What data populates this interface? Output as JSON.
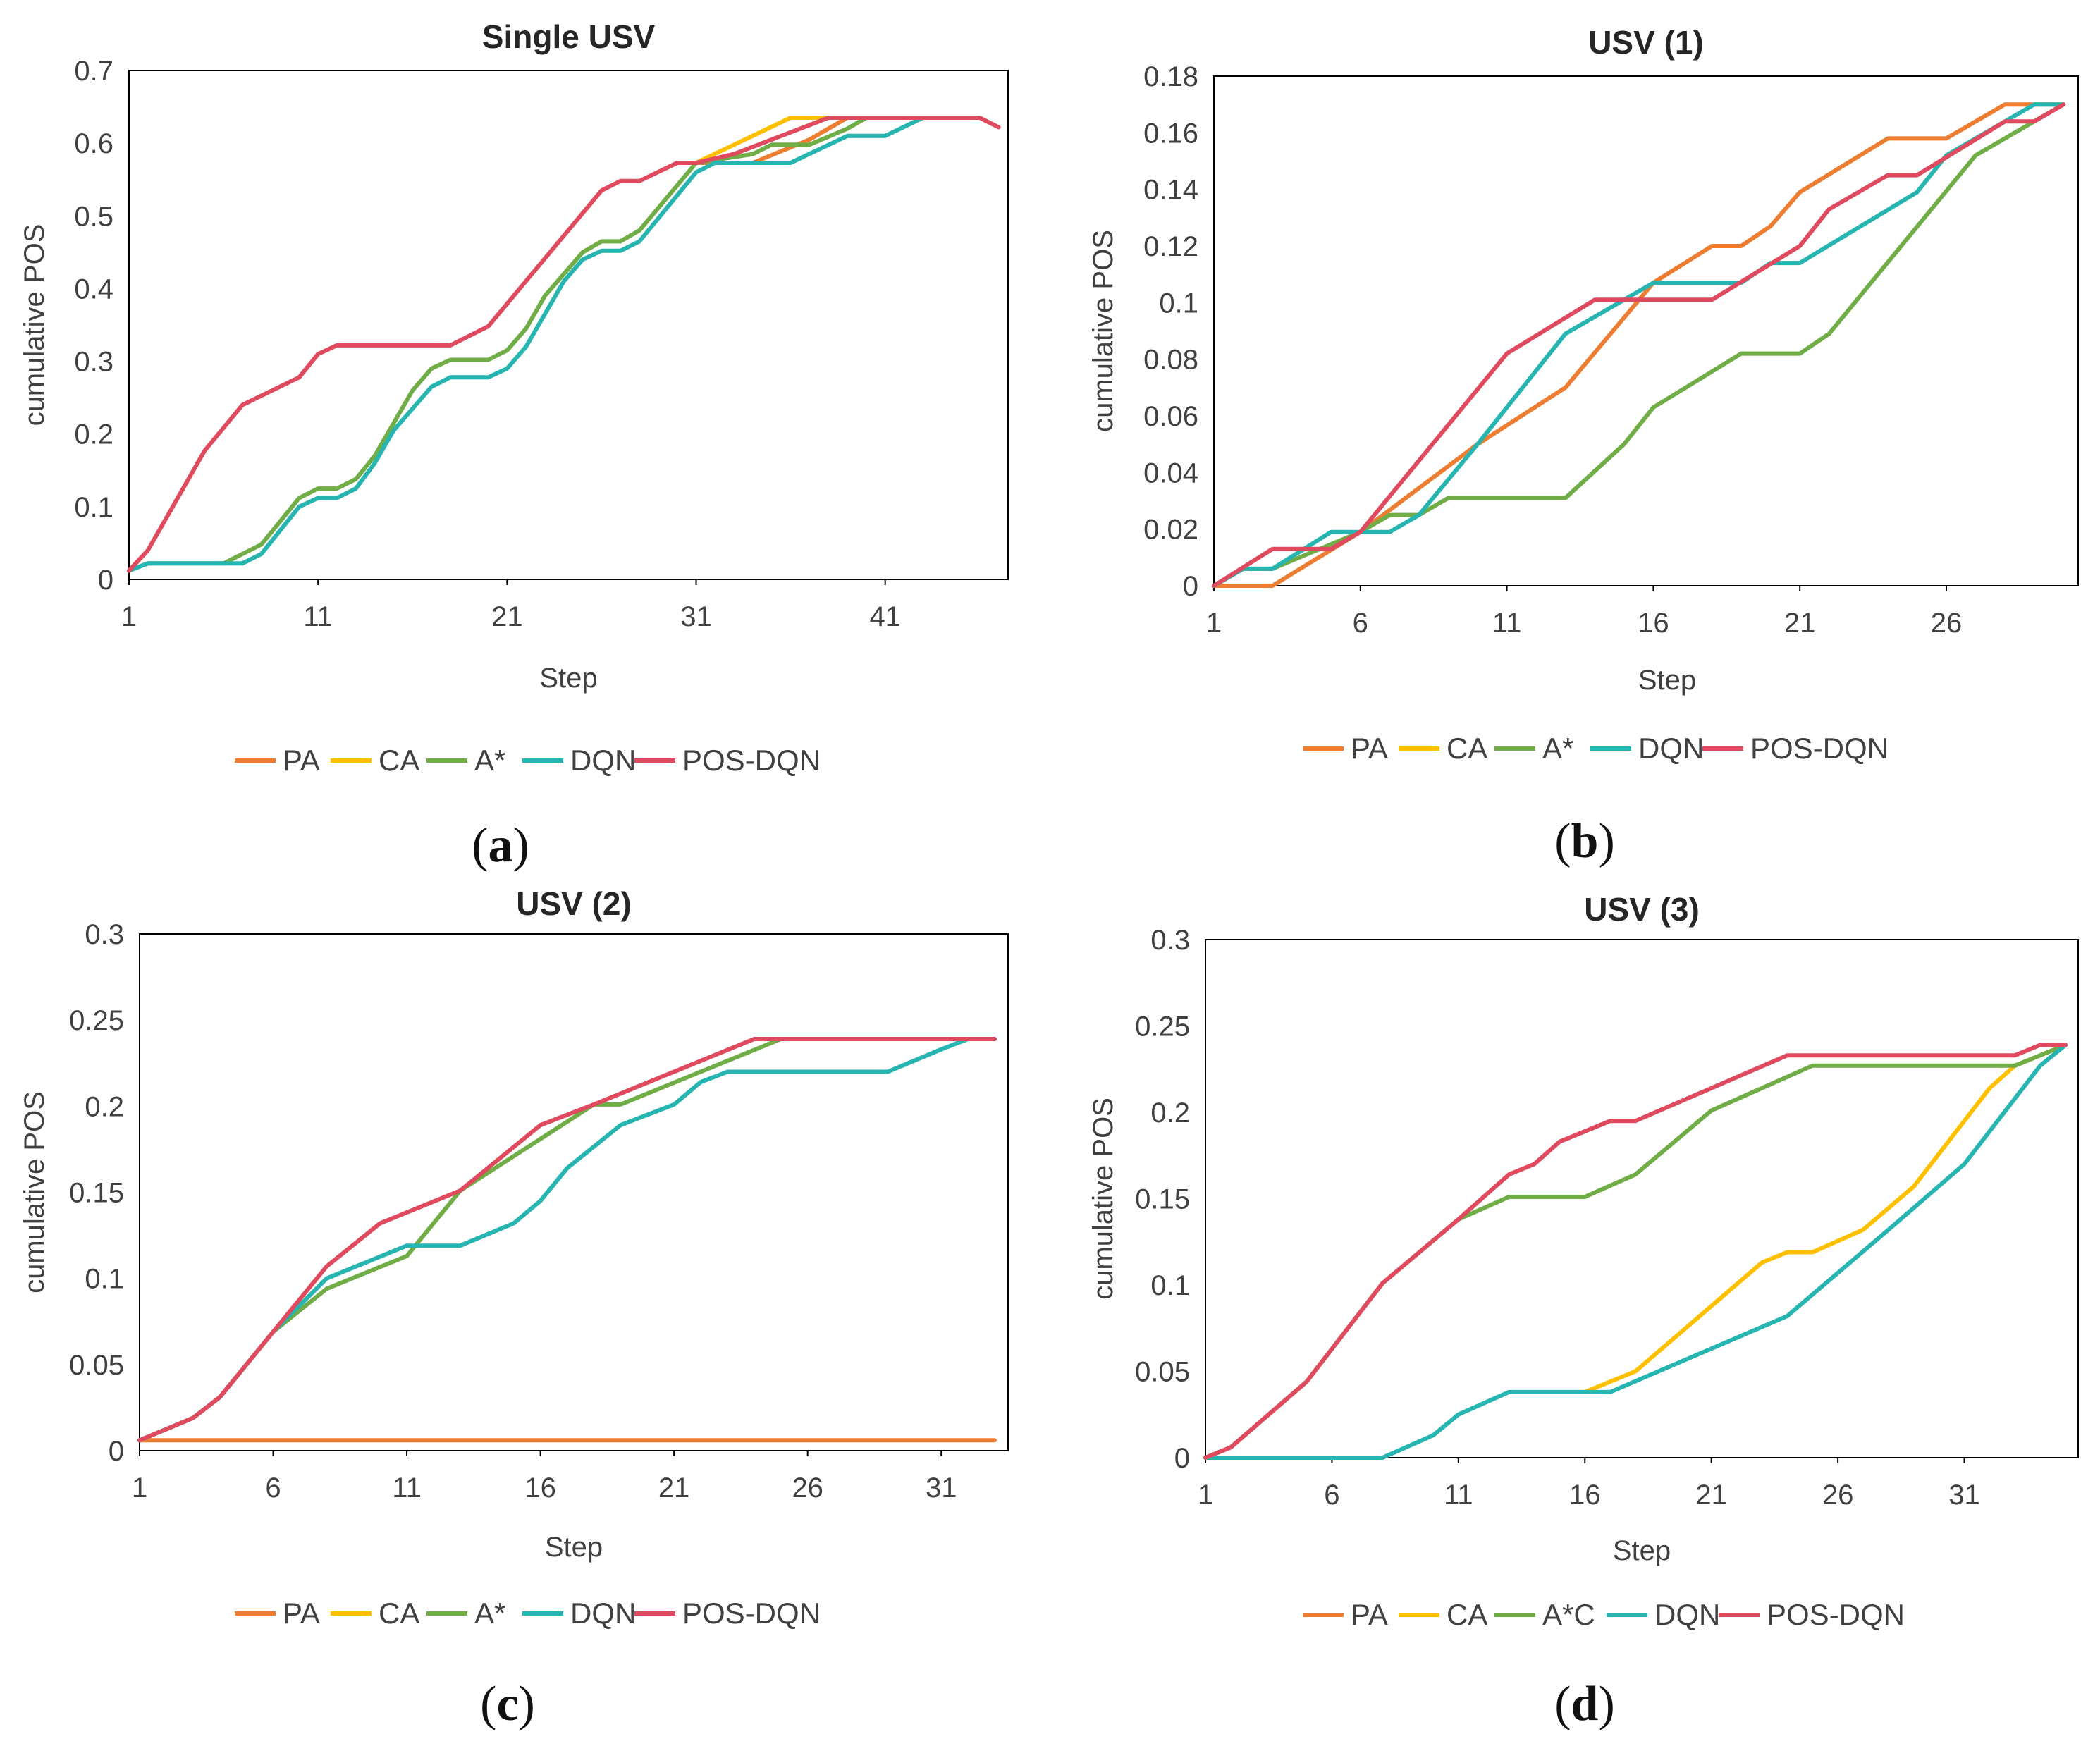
{
  "chart_data": [
    {
      "type": "line",
      "title": "Single USV",
      "caption_letter": "a",
      "xlabel": "Step",
      "ylabel": "cumulative POS",
      "x_ticks": [
        "1",
        "11",
        "21",
        "31",
        "41"
      ],
      "y_ticks": [
        "0",
        "0.1",
        "0.2",
        "0.3",
        "0.4",
        "0.5",
        "0.6",
        "0.7"
      ],
      "xlim": [
        1,
        47.5
      ],
      "ylim": [
        0,
        0.7
      ],
      "legend": [
        "PA",
        "CA",
        "A*",
        "DQN",
        "POS-DQN"
      ],
      "series": [
        {
          "name": "PA",
          "color": "#ed7d31",
          "points": [
            [
              31,
              0.573
            ],
            [
              34,
              0.573
            ],
            [
              37,
              0.605
            ],
            [
              39,
              0.635
            ],
            [
              44,
              0.635
            ]
          ]
        },
        {
          "name": "CA",
          "color": "#ffc000",
          "points": [
            [
              31,
              0.573
            ],
            [
              36,
              0.635
            ],
            [
              44,
              0.635
            ]
          ]
        },
        {
          "name": "A*",
          "color": "#70ad47",
          "points": [
            [
              1,
              0.012
            ],
            [
              2,
              0.022
            ],
            [
              6,
              0.022
            ],
            [
              8,
              0.048
            ],
            [
              10,
              0.112
            ],
            [
              11,
              0.125
            ],
            [
              12,
              0.125
            ],
            [
              13,
              0.138
            ],
            [
              14,
              0.17
            ],
            [
              16,
              0.26
            ],
            [
              17,
              0.29
            ],
            [
              18,
              0.302
            ],
            [
              20,
              0.302
            ],
            [
              21,
              0.315
            ],
            [
              22,
              0.345
            ],
            [
              23,
              0.39
            ],
            [
              25,
              0.45
            ],
            [
              26,
              0.465
            ],
            [
              27,
              0.465
            ],
            [
              28,
              0.48
            ],
            [
              31,
              0.573
            ],
            [
              34,
              0.585
            ],
            [
              35,
              0.598
            ],
            [
              37,
              0.598
            ],
            [
              39,
              0.62
            ],
            [
              40,
              0.635
            ],
            [
              44,
              0.635
            ]
          ]
        },
        {
          "name": "DQN",
          "color": "#26b5b0",
          "points": [
            [
              1,
              0.012
            ],
            [
              2,
              0.022
            ],
            [
              7,
              0.022
            ],
            [
              8,
              0.035
            ],
            [
              10,
              0.1
            ],
            [
              11,
              0.112
            ],
            [
              12,
              0.112
            ],
            [
              13,
              0.125
            ],
            [
              14,
              0.16
            ],
            [
              15,
              0.205
            ],
            [
              17,
              0.265
            ],
            [
              18,
              0.278
            ],
            [
              20,
              0.278
            ],
            [
              21,
              0.29
            ],
            [
              22,
              0.32
            ],
            [
              24,
              0.41
            ],
            [
              25,
              0.44
            ],
            [
              26,
              0.452
            ],
            [
              27,
              0.452
            ],
            [
              28,
              0.465
            ],
            [
              31,
              0.56
            ],
            [
              32,
              0.573
            ],
            [
              36,
              0.573
            ],
            [
              39,
              0.61
            ],
            [
              41,
              0.61
            ],
            [
              43,
              0.635
            ],
            [
              44,
              0.635
            ]
          ]
        },
        {
          "name": "POS-DQN",
          "color": "#e04a5f",
          "points": [
            [
              1,
              0.012
            ],
            [
              2,
              0.04
            ],
            [
              5,
              0.177
            ],
            [
              7,
              0.24
            ],
            [
              10,
              0.278
            ],
            [
              11,
              0.31
            ],
            [
              12,
              0.322
            ],
            [
              18,
              0.322
            ],
            [
              20,
              0.348
            ],
            [
              26,
              0.535
            ],
            [
              27,
              0.548
            ],
            [
              28,
              0.548
            ],
            [
              30,
              0.573
            ],
            [
              31,
              0.573
            ],
            [
              33,
              0.585
            ],
            [
              37,
              0.625
            ],
            [
              38,
              0.635
            ],
            [
              46,
              0.635
            ],
            [
              47,
              0.622
            ]
          ]
        }
      ]
    },
    {
      "type": "line",
      "title": "USV (1)",
      "caption_letter": "b",
      "xlabel": "Step",
      "ylabel": "cumulative POS",
      "x_ticks": [
        "1",
        "6",
        "11",
        "16",
        "21",
        "26"
      ],
      "y_ticks": [
        "0",
        "0.02",
        "0.04",
        "0.06",
        "0.08",
        "0.1",
        "0.12",
        "0.14",
        "0.16",
        "0.18"
      ],
      "xlim": [
        1,
        30.5
      ],
      "ylim": [
        0,
        0.18
      ],
      "legend": [
        "PA",
        "CA",
        "A*",
        "DQN",
        "POS-DQN"
      ],
      "series": [
        {
          "name": "PA",
          "color": "#ed7d31",
          "points": [
            [
              1,
              0
            ],
            [
              3,
              0
            ],
            [
              6,
              0.019
            ],
            [
              10,
              0.05
            ],
            [
              13,
              0.07
            ],
            [
              16,
              0.107
            ],
            [
              18,
              0.12
            ],
            [
              19,
              0.12
            ],
            [
              20,
              0.127
            ],
            [
              21,
              0.139
            ],
            [
              24,
              0.158
            ],
            [
              26,
              0.158
            ],
            [
              28,
              0.17
            ],
            [
              30,
              0.17
            ]
          ]
        },
        {
          "name": "CA",
          "color": "#ffc000",
          "points": []
        },
        {
          "name": "A*",
          "color": "#70ad47",
          "points": [
            [
              1,
              0
            ],
            [
              2,
              0.006
            ],
            [
              3,
              0.006
            ],
            [
              6,
              0.019
            ],
            [
              7,
              0.025
            ],
            [
              8,
              0.025
            ],
            [
              9,
              0.031
            ],
            [
              13,
              0.031
            ],
            [
              15,
              0.05
            ],
            [
              16,
              0.063
            ],
            [
              19,
              0.082
            ],
            [
              21,
              0.082
            ],
            [
              22,
              0.089
            ],
            [
              27,
              0.152
            ],
            [
              30,
              0.17
            ]
          ]
        },
        {
          "name": "DQN",
          "color": "#26b5b0",
          "points": [
            [
              1,
              0
            ],
            [
              2,
              0.006
            ],
            [
              3,
              0.006
            ],
            [
              5,
              0.019
            ],
            [
              7,
              0.019
            ],
            [
              8,
              0.025
            ],
            [
              10,
              0.05
            ],
            [
              13,
              0.089
            ],
            [
              16,
              0.107
            ],
            [
              19,
              0.107
            ],
            [
              20,
              0.114
            ],
            [
              21,
              0.114
            ],
            [
              25,
              0.139
            ],
            [
              26,
              0.152
            ],
            [
              28,
              0.164
            ],
            [
              29,
              0.17
            ],
            [
              30,
              0.17
            ]
          ]
        },
        {
          "name": "POS-DQN",
          "color": "#e04a5f",
          "points": [
            [
              1,
              0
            ],
            [
              3,
              0.013
            ],
            [
              5,
              0.013
            ],
            [
              6,
              0.019
            ],
            [
              11,
              0.082
            ],
            [
              14,
              0.101
            ],
            [
              18,
              0.101
            ],
            [
              21,
              0.12
            ],
            [
              22,
              0.133
            ],
            [
              24,
              0.145
            ],
            [
              25,
              0.145
            ],
            [
              28,
              0.164
            ],
            [
              29,
              0.164
            ],
            [
              30,
              0.17
            ]
          ]
        }
      ]
    },
    {
      "type": "line",
      "title": "USV (2)",
      "caption_letter": "c",
      "xlabel": "Step",
      "ylabel": "cumulative POS",
      "x_ticks": [
        "1",
        "6",
        "11",
        "16",
        "21",
        "26",
        "31"
      ],
      "y_ticks": [
        "0",
        "0.05",
        "0.1",
        "0.15",
        "0.2",
        "0.25",
        "0.3"
      ],
      "xlim": [
        1,
        33.5
      ],
      "ylim": [
        0,
        0.3
      ],
      "legend": [
        "PA",
        "CA",
        "A*",
        "DQN",
        "POS-DQN"
      ],
      "series": [
        {
          "name": "PA",
          "color": "#ed7d31",
          "points": [
            [
              1,
              0.006
            ],
            [
              33,
              0.006
            ]
          ]
        },
        {
          "name": "CA",
          "color": "#ffc000",
          "points": []
        },
        {
          "name": "A*",
          "color": "#70ad47",
          "points": [
            [
              1,
              0.006
            ],
            [
              3,
              0.019
            ],
            [
              4,
              0.031
            ],
            [
              6,
              0.069
            ],
            [
              8,
              0.094
            ],
            [
              11,
              0.113
            ],
            [
              13,
              0.151
            ],
            [
              18,
              0.201
            ],
            [
              19,
              0.201
            ],
            [
              25,
              0.239
            ],
            [
              33,
              0.239
            ]
          ]
        },
        {
          "name": "DQN",
          "color": "#26b5b0",
          "points": [
            [
              1,
              0.006
            ],
            [
              3,
              0.019
            ],
            [
              4,
              0.031
            ],
            [
              6,
              0.069
            ],
            [
              8,
              0.1
            ],
            [
              11,
              0.119
            ],
            [
              13,
              0.119
            ],
            [
              15,
              0.132
            ],
            [
              16,
              0.145
            ],
            [
              17,
              0.164
            ],
            [
              19,
              0.189
            ],
            [
              21,
              0.201
            ],
            [
              22,
              0.214
            ],
            [
              23,
              0.22
            ],
            [
              29,
              0.22
            ],
            [
              31,
              0.233
            ],
            [
              32,
              0.239
            ],
            [
              33,
              0.239
            ]
          ]
        },
        {
          "name": "POS-DQN",
          "color": "#e04a5f",
          "points": [
            [
              1,
              0.006
            ],
            [
              3,
              0.019
            ],
            [
              4,
              0.031
            ],
            [
              6,
              0.069
            ],
            [
              8,
              0.107
            ],
            [
              10,
              0.132
            ],
            [
              13,
              0.151
            ],
            [
              16,
              0.189
            ],
            [
              18,
              0.201
            ],
            [
              24,
              0.239
            ],
            [
              33,
              0.239
            ]
          ]
        }
      ]
    },
    {
      "type": "line",
      "title": "USV (3)",
      "caption_letter": "d",
      "xlabel": "Step",
      "ylabel": "cumulative POS",
      "x_ticks": [
        "1",
        "6",
        "11",
        "16",
        "21",
        "26",
        "31"
      ],
      "y_ticks": [
        "0",
        "0.05",
        "0.1",
        "0.15",
        "0.2",
        "0.25",
        "0.3"
      ],
      "xlim": [
        1,
        35.5
      ],
      "ylim": [
        0,
        0.3
      ],
      "legend": [
        "PA",
        "CA",
        "A*C",
        "DQN",
        "POS-DQN"
      ],
      "series": [
        {
          "name": "PA",
          "color": "#ed7d31",
          "points": []
        },
        {
          "name": "CA",
          "color": "#ffc000",
          "points": [
            [
              16,
              0.038
            ],
            [
              18,
              0.05
            ],
            [
              23,
              0.113
            ],
            [
              24,
              0.119
            ],
            [
              25,
              0.119
            ],
            [
              27,
              0.132
            ],
            [
              29,
              0.157
            ],
            [
              32,
              0.214
            ],
            [
              33,
              0.227
            ],
            [
              35,
              0.239
            ]
          ]
        },
        {
          "name": "A*C",
          "color": "#70ad47",
          "points": [
            [
              1,
              0
            ],
            [
              2,
              0.006
            ],
            [
              5,
              0.044
            ],
            [
              8,
              0.101
            ],
            [
              11,
              0.138
            ],
            [
              13,
              0.151
            ],
            [
              16,
              0.151
            ],
            [
              18,
              0.164
            ],
            [
              21,
              0.201
            ],
            [
              25,
              0.227
            ],
            [
              33,
              0.227
            ],
            [
              35,
              0.239
            ]
          ]
        },
        {
          "name": "DQN",
          "color": "#26b5b0",
          "points": [
            [
              1,
              0
            ],
            [
              8,
              0
            ],
            [
              10,
              0.013
            ],
            [
              11,
              0.025
            ],
            [
              13,
              0.038
            ],
            [
              17,
              0.038
            ],
            [
              24,
              0.082
            ],
            [
              28,
              0.132
            ],
            [
              31,
              0.17
            ],
            [
              34,
              0.227
            ],
            [
              35,
              0.239
            ]
          ]
        },
        {
          "name": "POS-DQN",
          "color": "#e04a5f",
          "points": [
            [
              1,
              0
            ],
            [
              2,
              0.006
            ],
            [
              5,
              0.044
            ],
            [
              8,
              0.101
            ],
            [
              11,
              0.138
            ],
            [
              13,
              0.164
            ],
            [
              14,
              0.17
            ],
            [
              15,
              0.183
            ],
            [
              17,
              0.195
            ],
            [
              18,
              0.195
            ],
            [
              24,
              0.233
            ],
            [
              33,
              0.233
            ],
            [
              34,
              0.239
            ],
            [
              35,
              0.239
            ]
          ]
        }
      ]
    }
  ]
}
